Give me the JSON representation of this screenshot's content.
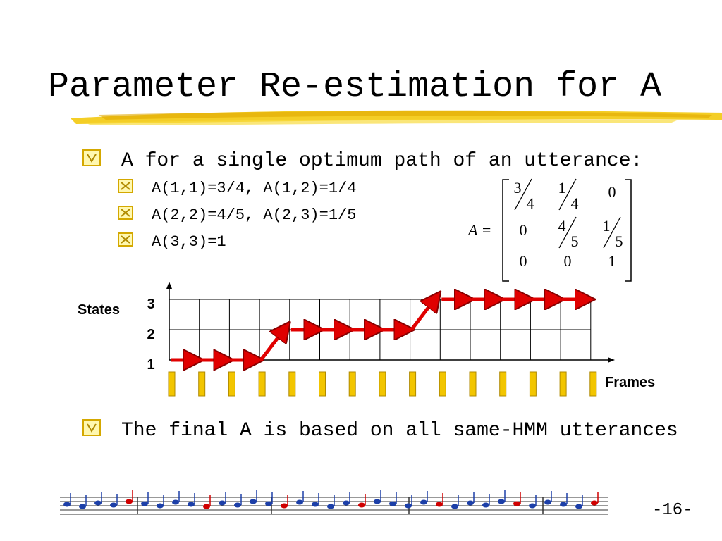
{
  "title": "Parameter Re-estimation for A",
  "bullets": [
    {
      "text": "A for a single optimum path of an utterance:",
      "sub": [
        "A(1,1)=3/4, A(1,2)=1/4",
        "A(2,2)=4/5, A(2,3)=1/5",
        "A(3,3)=1"
      ]
    },
    {
      "text": "The final A is based on all same-HMM utterances"
    }
  ],
  "matrix": {
    "label": "A =",
    "rows": [
      [
        {
          "num": "3",
          "den": "4"
        },
        {
          "num": "1",
          "den": "4"
        },
        "0"
      ],
      [
        "0",
        {
          "num": "4",
          "den": "5"
        },
        {
          "num": "1",
          "den": "5"
        }
      ],
      [
        "0",
        "0",
        "1"
      ]
    ]
  },
  "diagram": {
    "y_label": "States",
    "x_label": "Frames",
    "states": [
      "3",
      "2",
      "1"
    ]
  },
  "page_number": "-16-"
}
